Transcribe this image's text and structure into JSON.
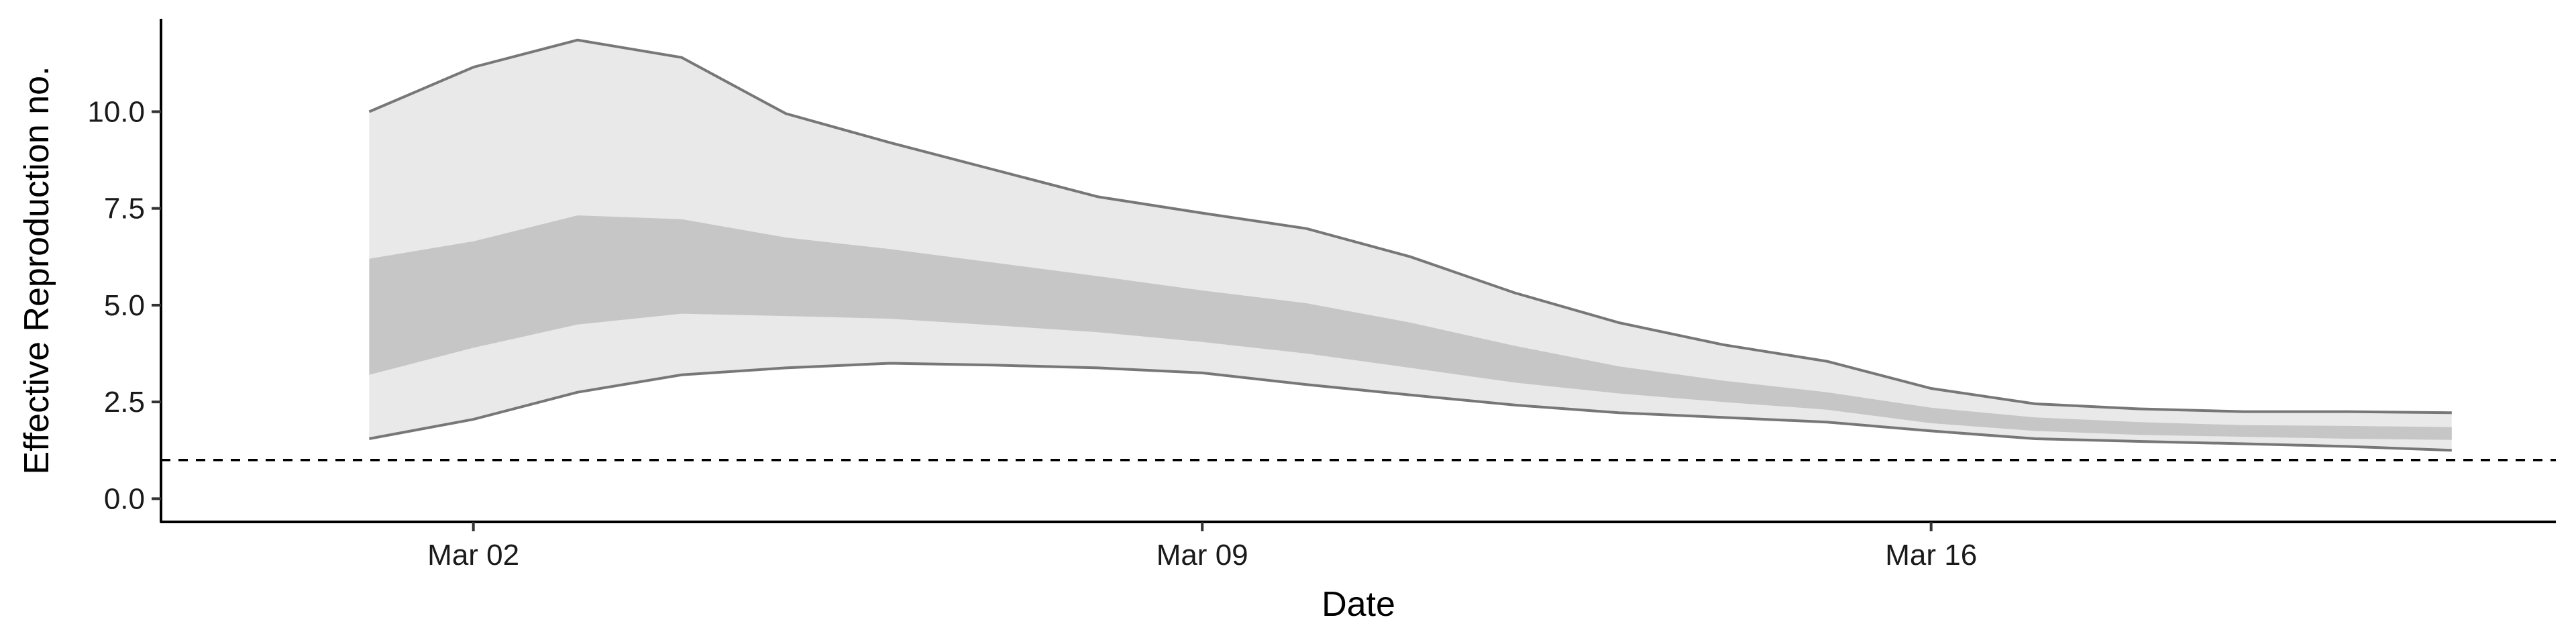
{
  "chart_data": {
    "type": "area",
    "xlabel": "Date",
    "ylabel": "Effective Reproduction no.",
    "x_tick_labels": [
      "Mar 02",
      "Mar 09",
      "Mar 16"
    ],
    "x_tick_days": [
      2,
      9,
      16
    ],
    "y_ticks": [
      0.0,
      2.5,
      5.0,
      7.5,
      10.0
    ],
    "y_tick_labels": [
      "0.0",
      "2.5",
      "5.0",
      "7.5",
      "10.0"
    ],
    "xlim": [
      "2020-02-28",
      "2020-03-22"
    ],
    "ylim": [
      -0.6,
      12.4
    ],
    "reference_line": {
      "y": 1.0,
      "style": "dashed"
    },
    "grid": false,
    "legend": "none",
    "x_dates": [
      "2020-03-01",
      "2020-03-02",
      "2020-03-03",
      "2020-03-04",
      "2020-03-05",
      "2020-03-06",
      "2020-03-07",
      "2020-03-08",
      "2020-03-09",
      "2020-03-10",
      "2020-03-11",
      "2020-03-12",
      "2020-03-13",
      "2020-03-14",
      "2020-03-15",
      "2020-03-16",
      "2020-03-17",
      "2020-03-18",
      "2020-03-19",
      "2020-03-20",
      "2020-03-21"
    ],
    "x": [
      1,
      2,
      3,
      4,
      5,
      6,
      7,
      8,
      9,
      10,
      11,
      12,
      13,
      14,
      15,
      16,
      17,
      18,
      19,
      20,
      21
    ],
    "series": [
      {
        "values": [
          1.55,
          2.05,
          2.75,
          3.2,
          3.38,
          3.5,
          3.45,
          3.38,
          3.25,
          2.95,
          2.68,
          2.42,
          2.22,
          2.1,
          1.98,
          1.75,
          1.55,
          1.48,
          1.42,
          1.35,
          1.25
        ]
      },
      {
        "values": [
          3.2,
          3.9,
          4.5,
          4.78,
          4.72,
          4.65,
          4.48,
          4.3,
          4.05,
          3.75,
          3.38,
          3.0,
          2.72,
          2.5,
          2.3,
          1.95,
          1.75,
          1.65,
          1.6,
          1.55,
          1.52
        ]
      },
      {
        "values": [
          6.2,
          6.65,
          7.32,
          7.22,
          6.75,
          6.45,
          6.1,
          5.75,
          5.38,
          5.05,
          4.55,
          3.95,
          3.42,
          3.05,
          2.75,
          2.35,
          2.1,
          1.98,
          1.9,
          1.88,
          1.85
        ]
      },
      {
        "values": [
          10.0,
          11.15,
          11.85,
          11.4,
          9.95,
          9.2,
          8.5,
          7.8,
          7.38,
          6.98,
          6.25,
          5.32,
          4.55,
          3.98,
          3.55,
          2.85,
          2.45,
          2.32,
          2.25,
          2.25,
          2.22
        ]
      }
    ],
    "colors": {
      "outer_band": "#e9e9e9",
      "inner_band": "#c6c6c6",
      "band_edge": "#777777",
      "reference_line": "#000000",
      "axis": "#000000"
    }
  }
}
